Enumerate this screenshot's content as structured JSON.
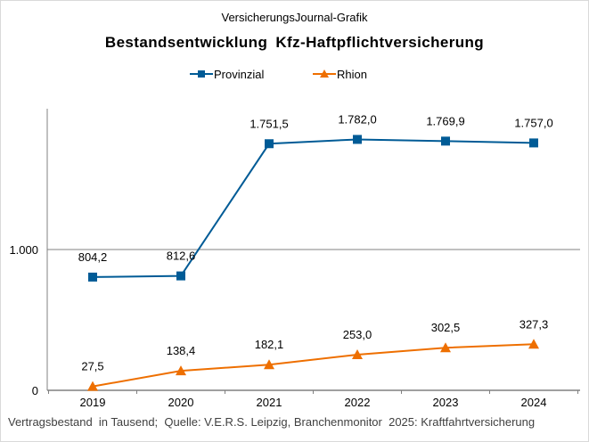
{
  "chart_data": {
    "type": "line",
    "supertitle": "VersicherungsJournal-Grafik",
    "title": "Bestandsentwicklung  Kfz-Haftpflichtversicherung",
    "footnote": "Vertragsbestand  in Tausend;  Quelle: V.E.R.S. Leipzig, Branchenmonitor  2025: Kraftfahrtversicherung",
    "categories": [
      "2019",
      "2020",
      "2021",
      "2022",
      "2023",
      "2024"
    ],
    "ylim": [
      0,
      2000
    ],
    "yticks": [
      {
        "value": 0,
        "label": "0"
      },
      {
        "value": 1000,
        "label": "1.000"
      }
    ],
    "grid": "horizontal at 1.000",
    "legend": "top",
    "series": [
      {
        "name": "Provinzial",
        "color": "#005b96",
        "marker": "square",
        "values": [
          804.2,
          812.6,
          1751.5,
          1782.0,
          1769.9,
          1757.0
        ],
        "labels": [
          "804,2",
          "812,6",
          "1.751,5",
          "1.782,0",
          "1.769,9",
          "1.757,0"
        ]
      },
      {
        "name": "Rhion",
        "color": "#ee6f00",
        "marker": "triangle",
        "values": [
          27.5,
          138.4,
          182.1,
          253.0,
          302.5,
          327.3
        ],
        "labels": [
          "27,5",
          "138,4",
          "182,1",
          "253,0",
          "302,5",
          "327,3"
        ]
      }
    ]
  }
}
